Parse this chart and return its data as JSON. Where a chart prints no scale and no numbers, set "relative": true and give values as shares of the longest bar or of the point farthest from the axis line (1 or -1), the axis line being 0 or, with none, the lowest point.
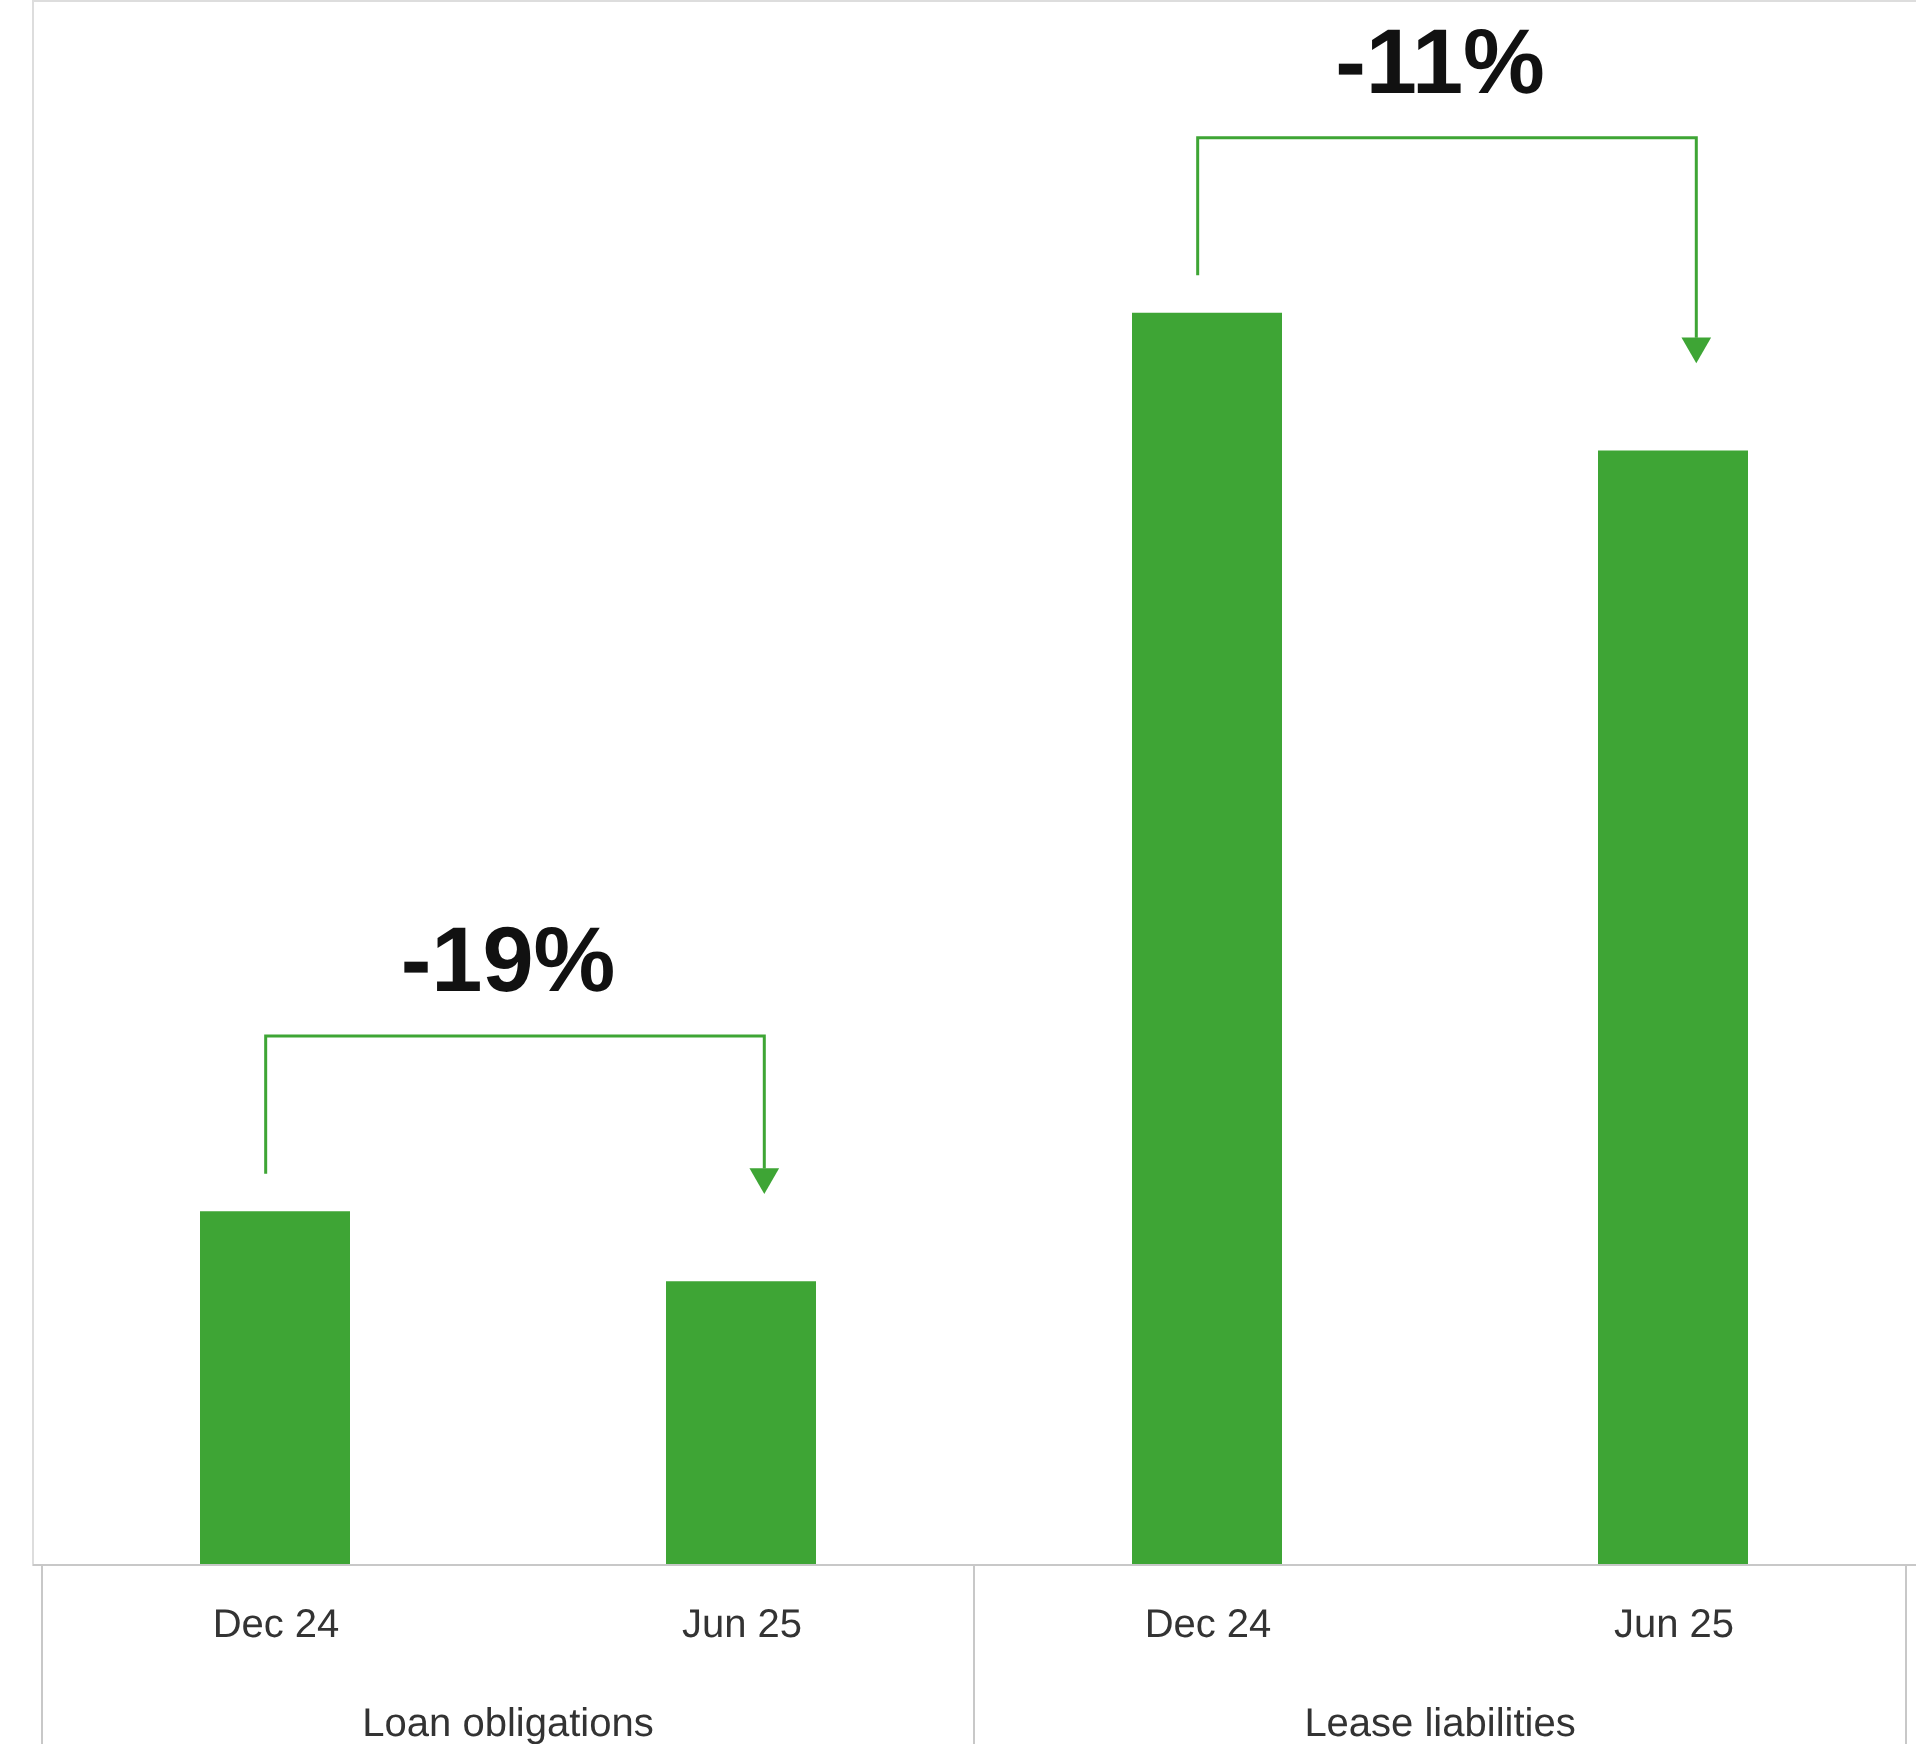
{
  "chart_data": {
    "type": "bar",
    "relative": true,
    "categories": [
      "Dec 24",
      "Jun 25",
      "Dec 24",
      "Jun 25"
    ],
    "values": [
      0.282,
      0.226,
      1,
      0.89
    ],
    "color": "#3ea535",
    "annotations": [
      "-19%",
      "-11%",
      "Loan obligations",
      "Lease liabilities"
    ],
    "grid": false
  }
}
